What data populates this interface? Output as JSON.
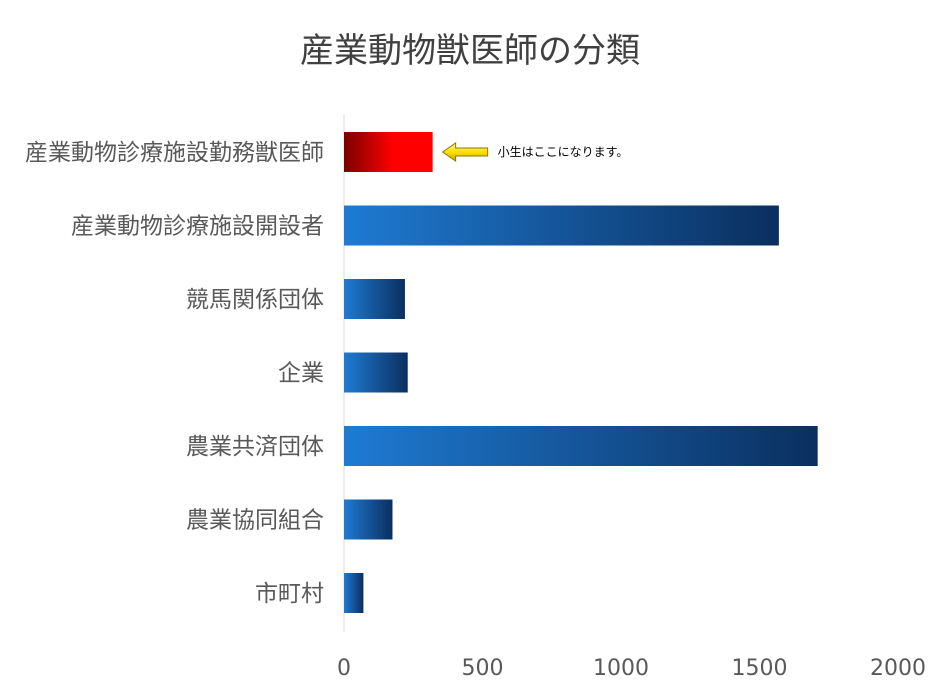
{
  "chart_data": {
    "type": "bar",
    "orientation": "horizontal",
    "title": "産業動物獣医師の分類",
    "categories": [
      "産業動物診療施設勤務獣医師",
      "産業動物診療施設開設者",
      "競馬関係団体",
      "企業",
      "農業共済団体",
      "農業協同組合",
      "市町村"
    ],
    "values": [
      320,
      1570,
      220,
      230,
      1710,
      175,
      70
    ],
    "highlight_index": 0,
    "xlim": [
      0,
      2000
    ],
    "xticks": [
      0,
      500,
      1000,
      1500,
      2000
    ],
    "xlabel": "",
    "ylabel": "",
    "grid": false,
    "legend": "none",
    "annotation": {
      "text": "小生はここになります。",
      "target_index": 0
    },
    "colors": {
      "bar_light": "#1F7BD3",
      "bar_dark": "#0A2F5F",
      "highlight_light": "#FF0000",
      "highlight_dark": "#7A0000",
      "arrow_fill": "#FFE000",
      "arrow_stroke": "#8C7A00"
    }
  }
}
